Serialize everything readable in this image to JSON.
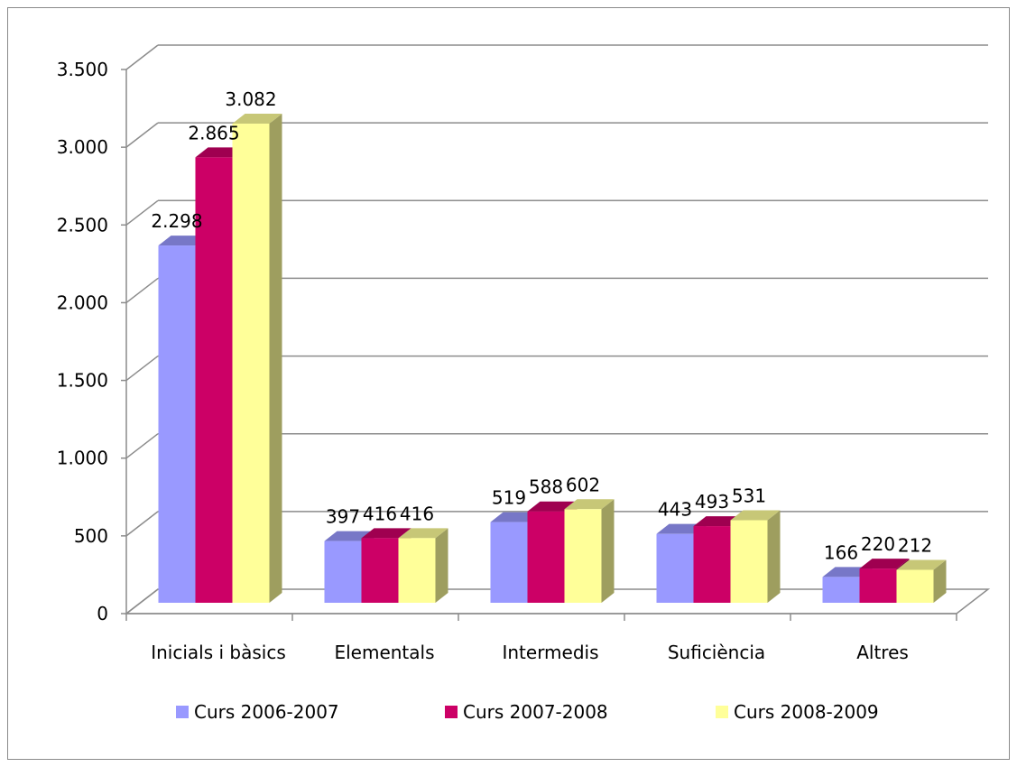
{
  "chart_data": {
    "type": "bar",
    "categories": [
      "Inicials i bàsics",
      "Elementals",
      "Intermedis",
      "Suficiència",
      "Altres"
    ],
    "series": [
      {
        "name": "Curs 2006-2007",
        "color": "#9999ff",
        "values": [
          2298,
          397,
          519,
          443,
          166
        ],
        "labels": [
          "2.298",
          "397",
          "519",
          "443",
          "166"
        ]
      },
      {
        "name": "Curs 2007-2008",
        "color": "#cc0066",
        "values": [
          2865,
          416,
          588,
          493,
          220
        ],
        "labels": [
          "2.865",
          "416",
          "588",
          "493",
          "220"
        ]
      },
      {
        "name": "Curs 2008-2009",
        "color": "#ffff99",
        "values": [
          3082,
          416,
          602,
          531,
          212
        ],
        "labels": [
          "3.082",
          "416",
          "602",
          "531",
          "212"
        ]
      }
    ],
    "yticks": [
      0,
      500,
      1000,
      1500,
      2000,
      2500,
      3000,
      3500
    ],
    "ytick_labels": [
      "0",
      "500",
      "1.000",
      "1.500",
      "2.000",
      "2.500",
      "3.000",
      "3.500"
    ],
    "ylim": [
      0,
      3500
    ],
    "grid": true,
    "legend_position": "bottom",
    "style": "3d-clustered-column"
  }
}
